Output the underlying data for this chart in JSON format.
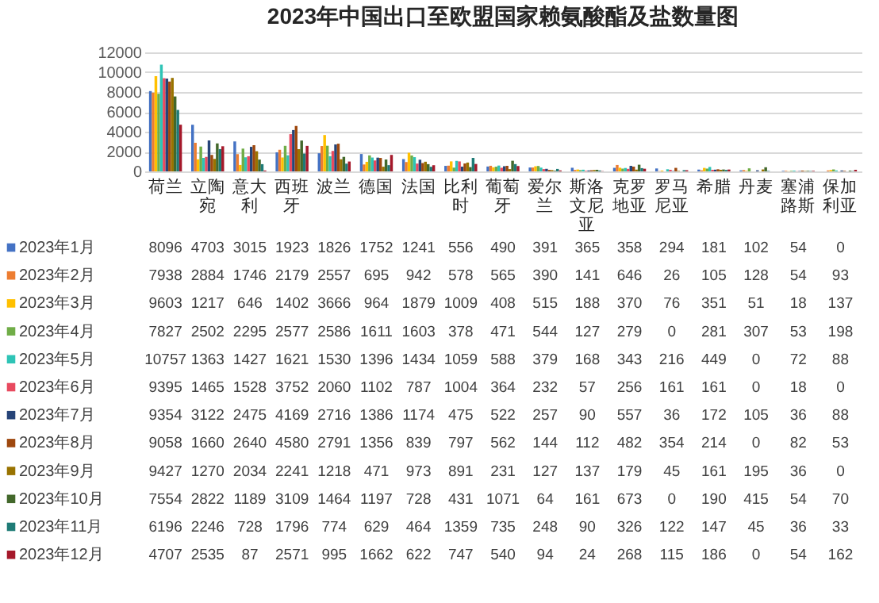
{
  "chart_data": {
    "type": "bar",
    "title": "2023年中国出口至欧盟国家赖氨酸酯及盐数量图",
    "categories": [
      "荷兰",
      "立陶宛",
      "意大利",
      "西班牙",
      "波兰",
      "德国",
      "法国",
      "比利时",
      "葡萄牙",
      "爱尔兰",
      "斯洛文尼亚",
      "克罗地亚",
      "罗马尼亚",
      "希腊",
      "丹麦",
      "塞浦路斯",
      "保加利亚"
    ],
    "series": [
      {
        "name": "2023年1月",
        "color": "#4472c4",
        "values": [
          8096,
          4703,
          3015,
          1923,
          1826,
          1752,
          1241,
          556,
          490,
          391,
          365,
          358,
          294,
          181,
          102,
          54,
          0
        ]
      },
      {
        "name": "2023年2月",
        "color": "#ed7d31",
        "values": [
          7938,
          2884,
          1746,
          2179,
          2557,
          695,
          942,
          578,
          565,
          390,
          141,
          646,
          26,
          105,
          128,
          54,
          93
        ]
      },
      {
        "name": "2023年3月",
        "color": "#ffc000",
        "values": [
          9603,
          1217,
          646,
          1402,
          3666,
          964,
          1879,
          1009,
          408,
          515,
          188,
          370,
          76,
          351,
          51,
          18,
          137
        ]
      },
      {
        "name": "2023年4月",
        "color": "#70ad47",
        "values": [
          7827,
          2502,
          2295,
          2577,
          2586,
          1611,
          1603,
          378,
          471,
          544,
          127,
          279,
          0,
          281,
          307,
          53,
          198
        ]
      },
      {
        "name": "2023年5月",
        "color": "#2ec4b6",
        "values": [
          10757,
          1363,
          1427,
          1621,
          1530,
          1396,
          1434,
          1059,
          588,
          379,
          168,
          343,
          216,
          449,
          0,
          72,
          88
        ]
      },
      {
        "name": "2023年6月",
        "color": "#e84a5f",
        "values": [
          9395,
          1465,
          1528,
          3752,
          2060,
          1102,
          787,
          1004,
          364,
          232,
          57,
          256,
          161,
          161,
          0,
          18,
          0
        ]
      },
      {
        "name": "2023年7月",
        "color": "#264478",
        "values": [
          9354,
          3122,
          2475,
          4169,
          2716,
          1386,
          1174,
          475,
          522,
          257,
          90,
          557,
          36,
          172,
          105,
          36,
          88
        ]
      },
      {
        "name": "2023年8月",
        "color": "#9e480e",
        "values": [
          9058,
          1660,
          2640,
          4580,
          2791,
          1356,
          839,
          797,
          562,
          144,
          112,
          482,
          354,
          214,
          0,
          82,
          53
        ]
      },
      {
        "name": "2023年9月",
        "color": "#997300",
        "values": [
          9427,
          1270,
          2034,
          2241,
          1218,
          471,
          973,
          891,
          231,
          127,
          137,
          179,
          45,
          161,
          195,
          36,
          0
        ]
      },
      {
        "name": "2023年10月",
        "color": "#43682b",
        "values": [
          7554,
          2822,
          1189,
          3109,
          1464,
          1197,
          728,
          431,
          1071,
          64,
          161,
          673,
          0,
          190,
          415,
          54,
          70
        ]
      },
      {
        "name": "2023年11月",
        "color": "#1e7b76",
        "values": [
          6196,
          2246,
          728,
          1796,
          774,
          629,
          464,
          1359,
          735,
          248,
          90,
          326,
          122,
          147,
          45,
          36,
          33
        ]
      },
      {
        "name": "2023年12月",
        "color": "#a5182a",
        "values": [
          4707,
          2535,
          87,
          2571,
          995,
          1662,
          622,
          747,
          540,
          94,
          24,
          268,
          115,
          186,
          0,
          54,
          162
        ]
      }
    ],
    "ylim": [
      0,
      12000
    ],
    "yticks": [
      0,
      2000,
      4000,
      6000,
      8000,
      10000,
      12000
    ],
    "grid": "y",
    "legend": "bottom left",
    "data_labels": true
  }
}
